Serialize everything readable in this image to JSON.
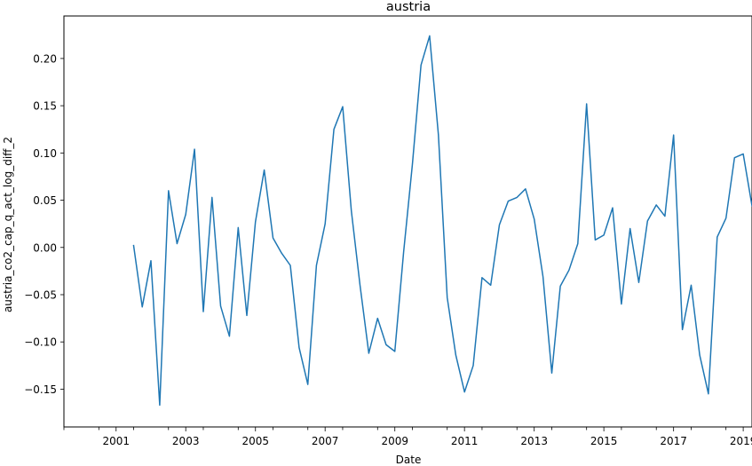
{
  "chart_data": {
    "type": "line",
    "title": "austria",
    "xlabel": "Date",
    "ylabel": "austria_co2_cap_q_act_log_diff_2",
    "xlim": [
      "2000-01-01",
      "2019-10-01"
    ],
    "ylim": [
      -0.19,
      0.245
    ],
    "grid": false,
    "line_color": "#1f77b4",
    "x_tick_labels": [
      "2001",
      "2003",
      "2005",
      "2007",
      "2009",
      "2011",
      "2013",
      "2015",
      "2017",
      "2019"
    ],
    "y_ticks": [
      -0.15,
      -0.1,
      -0.05,
      0.0,
      0.05,
      0.1,
      0.15,
      0.2
    ],
    "y_tick_labels": [
      "−0.15",
      "−0.10",
      "−0.05",
      "0.00",
      "0.05",
      "0.10",
      "0.15",
      "0.20"
    ],
    "series": [
      {
        "x": [
          "2002-01-01",
          "2002-04-01",
          "2002-07-01",
          "2002-10-01",
          "2003-01-01",
          "2003-04-01",
          "2003-07-01",
          "2003-10-01",
          "2004-01-01",
          "2004-04-01",
          "2004-07-01",
          "2004-10-01",
          "2005-01-01",
          "2005-04-01",
          "2005-07-01",
          "2005-10-01",
          "2006-01-01",
          "2006-04-01",
          "2006-07-01",
          "2006-10-01",
          "2007-01-01",
          "2007-04-01",
          "2007-07-01",
          "2007-10-01",
          "2008-01-01",
          "2008-04-01",
          "2008-07-01",
          "2008-10-01",
          "2009-01-01",
          "2009-04-01",
          "2009-07-01",
          "2009-10-01",
          "2010-01-01",
          "2010-04-01",
          "2010-07-01",
          "2010-10-01",
          "2011-01-01",
          "2011-04-01",
          "2011-07-01",
          "2011-10-01",
          "2012-01-01",
          "2012-04-01",
          "2012-07-01",
          "2012-10-01",
          "2013-01-01",
          "2013-04-01",
          "2013-07-01",
          "2013-10-01",
          "2014-01-01",
          "2014-04-01",
          "2014-07-01",
          "2014-10-01",
          "2015-01-01",
          "2015-04-01",
          "2015-07-01",
          "2015-10-01",
          "2016-01-01",
          "2016-04-01",
          "2016-07-01",
          "2016-10-01",
          "2017-01-01",
          "2017-04-01",
          "2017-07-01",
          "2017-10-01",
          "2018-01-01",
          "2018-04-01",
          "2018-07-01",
          "2018-10-01",
          "2019-01-01",
          "2019-04-01",
          "2019-07-01",
          "2019-10-01"
        ],
        "y": [
          0.002,
          -0.063,
          -0.014,
          -0.167,
          0.06,
          0.004,
          0.035,
          0.104,
          -0.068,
          0.053,
          -0.062,
          -0.094,
          0.021,
          -0.072,
          0.027,
          0.082,
          0.01,
          -0.006,
          -0.019,
          -0.106,
          -0.145,
          -0.019,
          0.025,
          0.125,
          0.149,
          0.039,
          -0.04,
          -0.112,
          -0.075,
          -0.103,
          -0.11,
          -0.005,
          0.088,
          0.193,
          0.224,
          0.119,
          -0.053,
          -0.114,
          -0.153,
          -0.125,
          -0.032,
          -0.04,
          0.024,
          0.049,
          0.053,
          0.062,
          0.03,
          -0.031,
          -0.133,
          -0.041,
          -0.024,
          0.004,
          0.152,
          0.008,
          0.013,
          0.042,
          -0.06,
          0.02,
          -0.037,
          0.028,
          0.045,
          0.033,
          0.119,
          -0.087,
          -0.04,
          -0.114,
          -0.155,
          0.011,
          0.031,
          0.095,
          0.099,
          0.044
        ]
      }
    ]
  }
}
